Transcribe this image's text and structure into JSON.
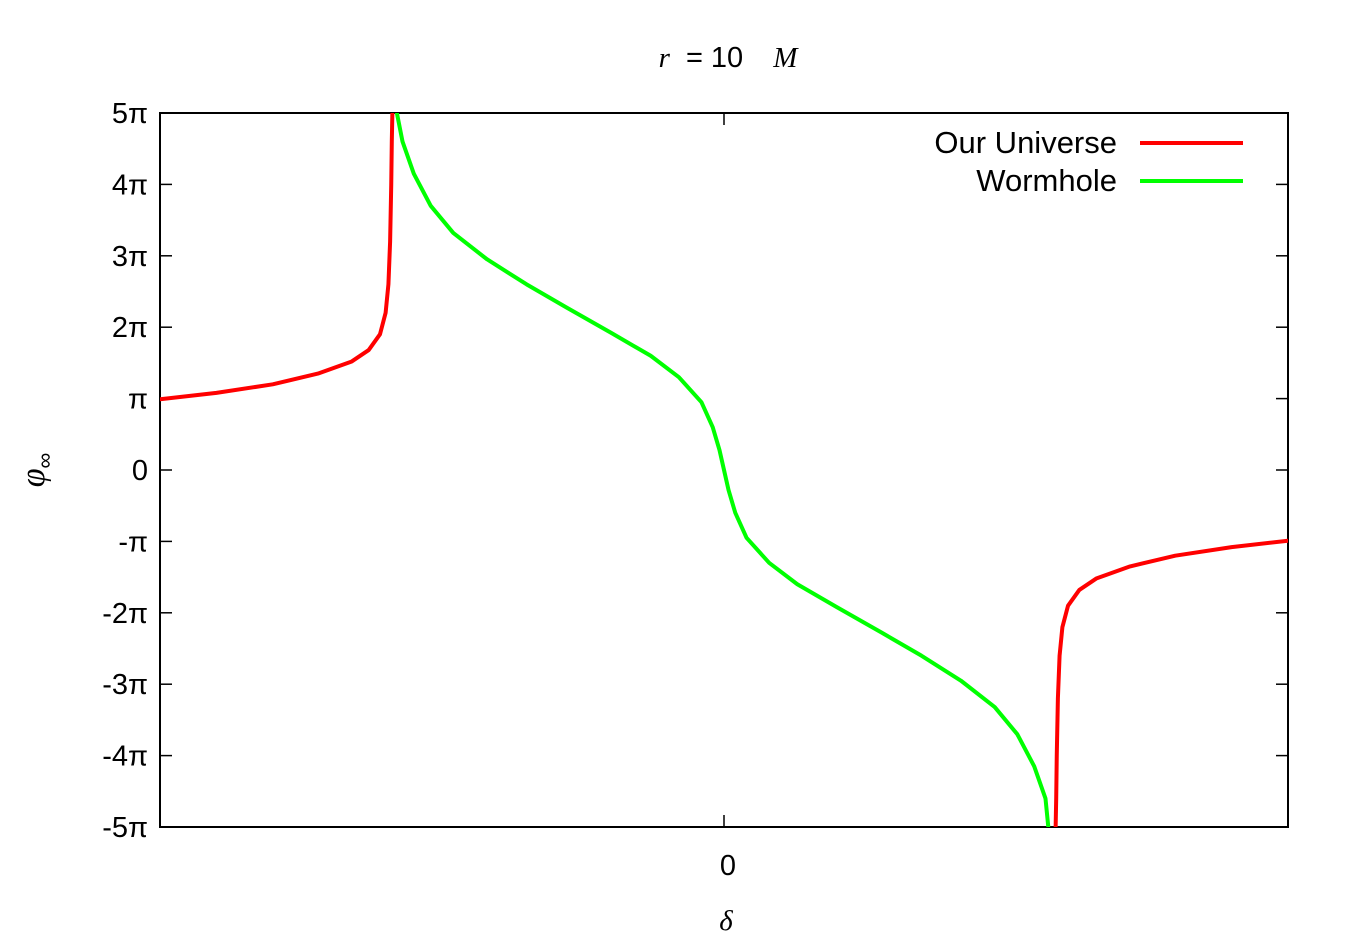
{
  "chart_data": {
    "type": "line",
    "title": {
      "var": "r",
      "eq": "= 10",
      "unit": "M"
    },
    "xlabel": "δ",
    "ylabel": {
      "main": "φ",
      "sub": "∞"
    },
    "ylim": [
      -5,
      5
    ],
    "xlim": [
      -1,
      1
    ],
    "xticks": [
      {
        "value": 0,
        "label": "0"
      }
    ],
    "yticks": [
      {
        "value": 5,
        "label": "5π"
      },
      {
        "value": 4,
        "label": "4π"
      },
      {
        "value": 3,
        "label": "3π"
      },
      {
        "value": 2,
        "label": "2π"
      },
      {
        "value": 1,
        "label": "π"
      },
      {
        "value": 0,
        "label": "0"
      },
      {
        "value": -1,
        "label": "-π"
      },
      {
        "value": -2,
        "label": "-2π"
      },
      {
        "value": -3,
        "label": "-3π"
      },
      {
        "value": -4,
        "label": "-4π"
      },
      {
        "value": -5,
        "label": "-5π"
      }
    ],
    "grid": false,
    "legend_position": "top-right",
    "series": [
      {
        "name": "Our Universe",
        "color": "#ff0000",
        "segments": [
          [
            [
              -1.0,
              0.99
            ],
            [
              -0.9,
              1.08
            ],
            [
              -0.8,
              1.2
            ],
            [
              -0.72,
              1.35
            ],
            [
              -0.66,
              1.52
            ],
            [
              -0.63,
              1.68
            ],
            [
              -0.61,
              1.9
            ],
            [
              -0.6,
              2.2
            ],
            [
              -0.595,
              2.6
            ],
            [
              -0.592,
              3.2
            ],
            [
              -0.59,
              4.0
            ],
            [
              -0.589,
              4.6
            ],
            [
              -0.588,
              5.0
            ]
          ],
          [
            [
              0.588,
              -5.0
            ],
            [
              0.589,
              -4.6
            ],
            [
              0.59,
              -4.0
            ],
            [
              0.592,
              -3.2
            ],
            [
              0.595,
              -2.6
            ],
            [
              0.6,
              -2.2
            ],
            [
              0.61,
              -1.9
            ],
            [
              0.63,
              -1.68
            ],
            [
              0.66,
              -1.52
            ],
            [
              0.72,
              -1.35
            ],
            [
              0.8,
              -1.2
            ],
            [
              0.9,
              -1.08
            ],
            [
              1.0,
              -0.99
            ]
          ]
        ]
      },
      {
        "name": "Wormhole",
        "color": "#00ff00",
        "segments": [
          [
            [
              -0.58,
              5.0
            ],
            [
              -0.57,
              4.6
            ],
            [
              -0.55,
              4.15
            ],
            [
              -0.52,
              3.7
            ],
            [
              -0.48,
              3.32
            ],
            [
              -0.42,
              2.95
            ],
            [
              -0.35,
              2.6
            ],
            [
              -0.28,
              2.28
            ],
            [
              -0.2,
              1.92
            ],
            [
              -0.13,
              1.6
            ],
            [
              -0.08,
              1.3
            ],
            [
              -0.04,
              0.95
            ],
            [
              -0.02,
              0.6
            ],
            [
              -0.008,
              0.28
            ],
            [
              0.0,
              0.0
            ],
            [
              0.008,
              -0.28
            ],
            [
              0.02,
              -0.6
            ],
            [
              0.04,
              -0.95
            ],
            [
              0.08,
              -1.3
            ],
            [
              0.13,
              -1.6
            ],
            [
              0.2,
              -1.92
            ],
            [
              0.28,
              -2.28
            ],
            [
              0.35,
              -2.6
            ],
            [
              0.42,
              -2.95
            ],
            [
              0.48,
              -3.32
            ],
            [
              0.52,
              -3.7
            ],
            [
              0.55,
              -4.15
            ],
            [
              0.57,
              -4.6
            ],
            [
              0.575,
              -5.0
            ]
          ]
        ]
      }
    ]
  }
}
